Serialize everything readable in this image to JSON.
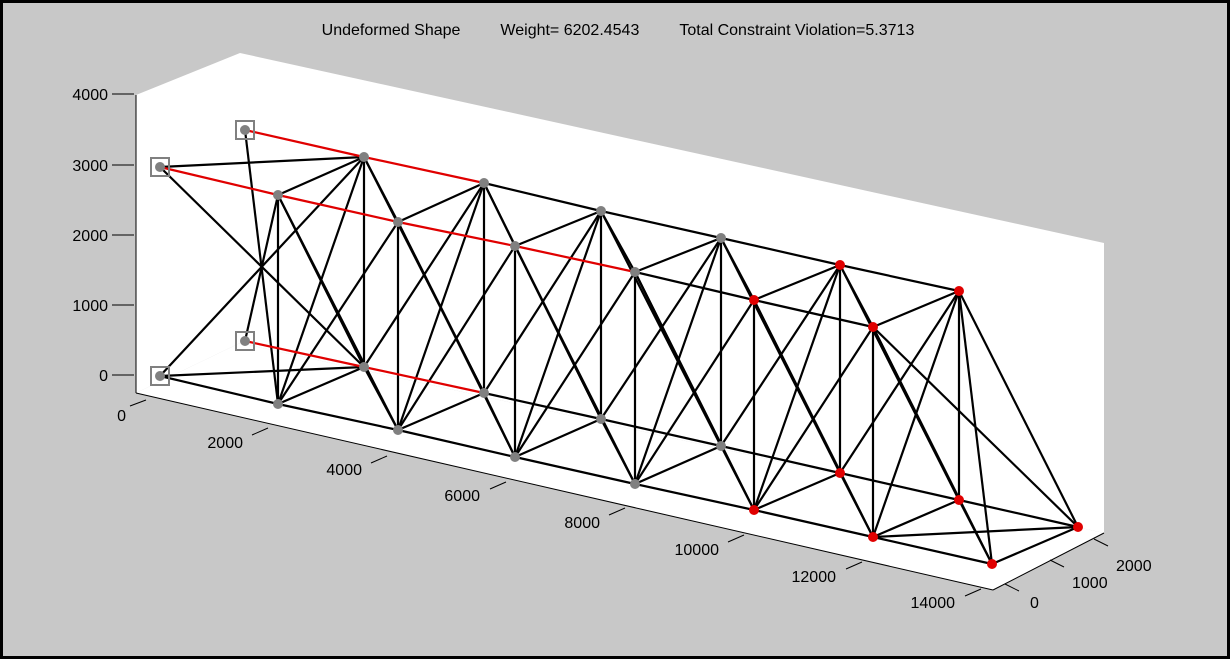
{
  "title_parts": {
    "shape": "Undeformed Shape",
    "weight": "Weight= 6202.4543",
    "violation": "Total Constraint Violation=5.3713"
  },
  "z_ticks": [
    "0",
    "1000",
    "2000",
    "3000",
    "4000"
  ],
  "x_ticks": [
    "0",
    "2000",
    "4000",
    "6000",
    "8000",
    "10000",
    "12000",
    "14000"
  ],
  "y_ticks": [
    "0",
    "1000",
    "2000"
  ],
  "colors": {
    "background": "#c8c8c8",
    "axes_fill": "#ffffff",
    "member": "#000000",
    "highlight_member": "#e00000",
    "node": "#808080",
    "loaded_node": "#e00000",
    "support": "#808080"
  },
  "nodes": [
    {
      "id": "s1",
      "kind": "support"
    },
    {
      "id": "s2",
      "kind": "support"
    },
    {
      "id": "s3",
      "kind": "support"
    },
    {
      "id": "s4",
      "kind": "support"
    },
    {
      "id": "ta1"
    },
    {
      "id": "ta2"
    },
    {
      "id": "ta3"
    },
    {
      "id": "ta4"
    },
    {
      "id": "ta5",
      "kind": "loaded"
    },
    {
      "id": "ta6",
      "kind": "loaded"
    },
    {
      "id": "tb1"
    },
    {
      "id": "tb2"
    },
    {
      "id": "tb3"
    },
    {
      "id": "tb4"
    },
    {
      "id": "tb5",
      "kind": "loaded"
    },
    {
      "id": "tb6",
      "kind": "loaded"
    },
    {
      "id": "ba1"
    },
    {
      "id": "ba2"
    },
    {
      "id": "ba3"
    },
    {
      "id": "ba4"
    },
    {
      "id": "ba5",
      "kind": "loaded"
    },
    {
      "id": "ba6",
      "kind": "loaded"
    },
    {
      "id": "bb1"
    },
    {
      "id": "bb2"
    },
    {
      "id": "bb3"
    },
    {
      "id": "bb4"
    },
    {
      "id": "bb5",
      "kind": "loaded"
    },
    {
      "id": "bb6",
      "kind": "loaded"
    },
    {
      "id": "tip1",
      "kind": "loaded"
    },
    {
      "id": "tip2",
      "kind": "loaded"
    }
  ]
}
